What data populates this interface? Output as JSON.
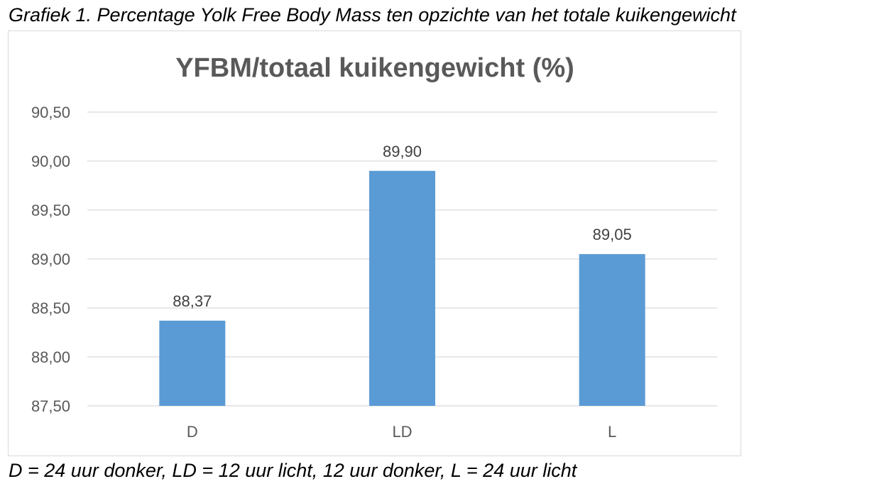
{
  "caption_top": "Grafiek 1. Percentage Yolk Free Body Mass ten opzichte van het totale kuikengewicht",
  "caption_bottom": "D = 24 uur donker, LD = 12 uur licht, 12 uur donker, L = 24 uur licht",
  "chart_data": {
    "type": "bar",
    "title": "YFBM/totaal kuikengewicht (%)",
    "categories": [
      "D",
      "LD",
      "L"
    ],
    "values": [
      88.37,
      89.9,
      89.05
    ],
    "data_labels": [
      "88,37",
      "89,90",
      "89,05"
    ],
    "ylim": [
      87.5,
      90.5
    ],
    "yticks": [
      87.5,
      88.0,
      88.5,
      89.0,
      89.5,
      90.0,
      90.5
    ],
    "ytick_labels": [
      "87,50",
      "88,00",
      "88,50",
      "89,00",
      "89,50",
      "90,00",
      "90,50"
    ],
    "xlabel": "",
    "ylabel": "",
    "grid": true,
    "legend": "none",
    "bar_color": "#5b9bd5"
  }
}
